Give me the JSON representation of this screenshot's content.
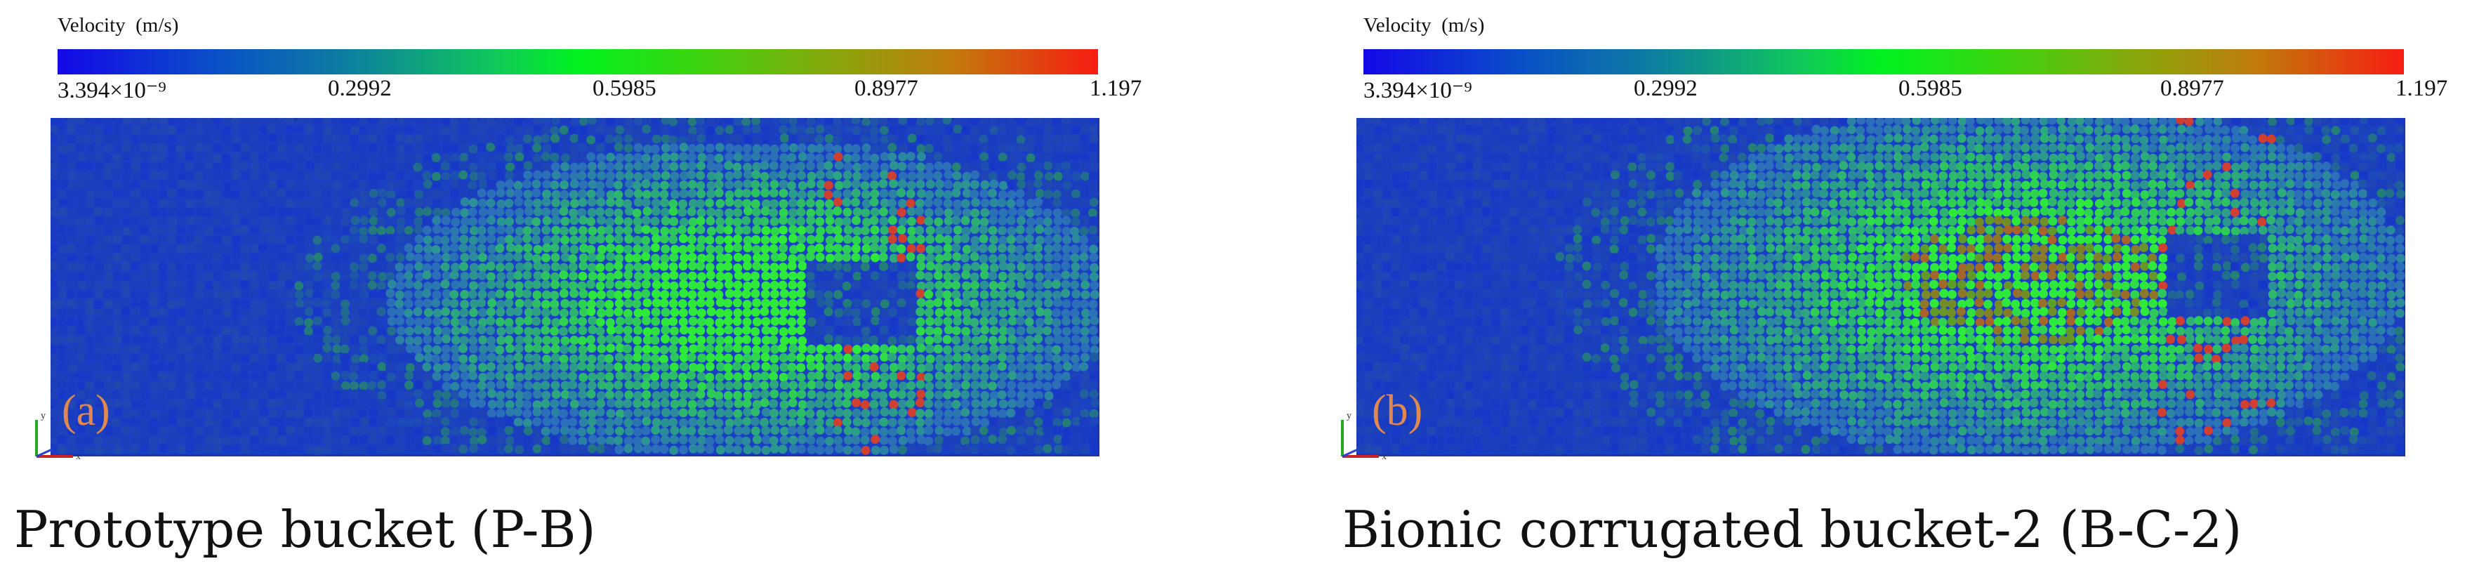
{
  "panels": [
    {
      "label": "(a)",
      "caption": "Prototype bucket (P-B)",
      "colorbar": {
        "title": "Velocity  (m/s)",
        "ticks": [
          "3.394×10⁻⁹",
          "0.2992",
          "0.5985",
          "0.8977",
          "1.197"
        ]
      },
      "axes": {
        "x": "x",
        "y": "y"
      }
    },
    {
      "label": "(b)",
      "caption": "Bionic corrugated bucket-2 (B-C-2)",
      "colorbar": {
        "title": "Velocity  (m/s)",
        "ticks": [
          "3.394×10⁻⁹",
          "0.2992",
          "0.5985",
          "0.8977",
          "1.197"
        ]
      },
      "axes": {
        "x": "x",
        "y": "y"
      }
    }
  ],
  "colors": {
    "low": "#1408e8",
    "mid": "#00f21e",
    "high": "#f81c12",
    "background_particles": "#1b3fc4",
    "label": "#e08850"
  }
}
